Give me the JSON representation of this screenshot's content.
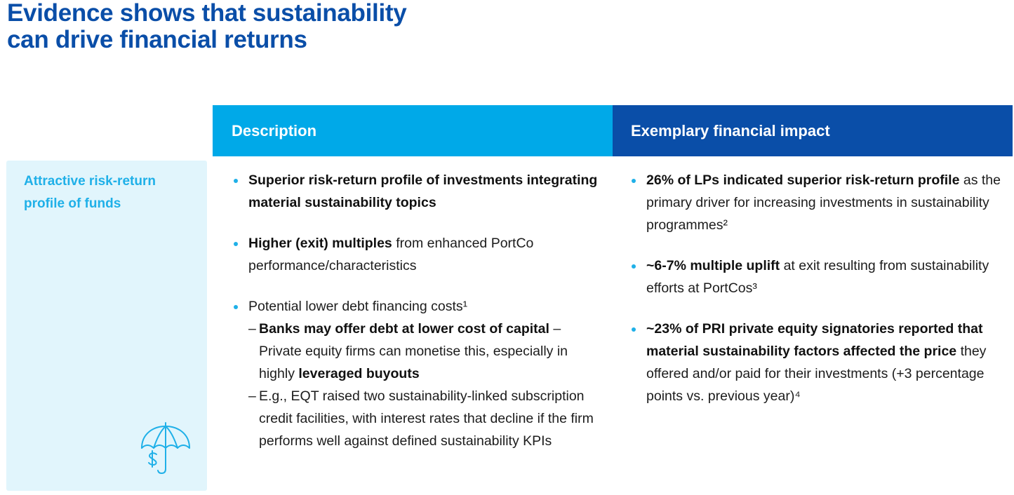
{
  "title": {
    "line1": "Evidence shows that sustainability",
    "line2": "can drive financial returns"
  },
  "headers": {
    "description": "Description",
    "impact": "Exemplary financial impact"
  },
  "side": {
    "label": "Attractive risk-return profile of funds",
    "icon": "umbrella-dollar-icon"
  },
  "description": {
    "b1": {
      "bold": "Superior risk-return profile of investments integrating material sustainability topics"
    },
    "b2": {
      "bold": "Higher (exit) multiples",
      "rest": " from enhanced PortCo performance/characteristics"
    },
    "b3": {
      "text": "Potential lower debt financing costs¹",
      "sub1": {
        "dash": "–",
        "bold1": "Banks may offer debt at lower cost of capital",
        "text1": " – Private equity firms can monetise this, especially in highly ",
        "bold2": "leveraged buyouts"
      },
      "sub2": {
        "dash": "–",
        "text": "E.g., EQT raised two sustainability-linked subscription credit facilities, with interest rates that decline if the firm performs well against defined sustainability KPIs"
      }
    }
  },
  "impact": {
    "b1": {
      "bold": "26% of LPs indicated superior risk-return profile",
      "rest": " as the primary driver for increasing investments in sustainability programmes²"
    },
    "b2": {
      "bold": "~6-7% multiple uplift",
      "rest": " at exit resulting from sustainability efforts at PortCos³"
    },
    "b3": {
      "bold": "~23% of PRI private equity signatories reported that material sustainability factors affected the price",
      "rest": " they offered and/or paid for their investments (+3 percentage points vs. previous year)⁴"
    }
  },
  "colors": {
    "title": "#0a4ea8",
    "header_description": "#00a9e8",
    "header_impact": "#0a4ea8",
    "side_panel": "#e1f5fc",
    "accent": "#1fb0e8"
  }
}
